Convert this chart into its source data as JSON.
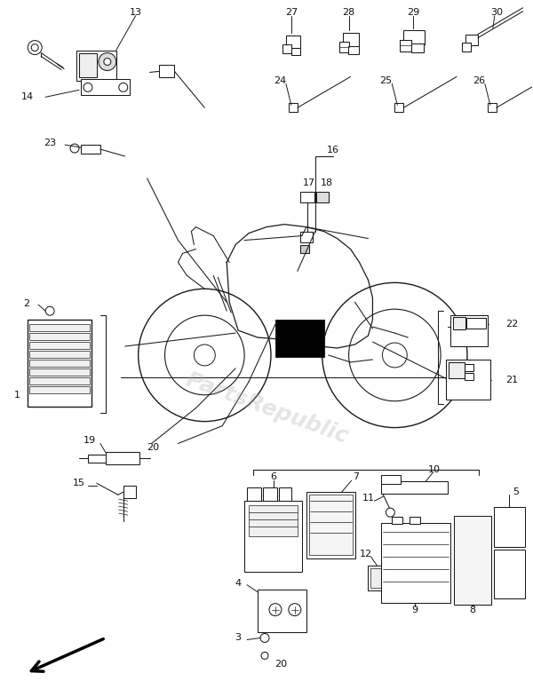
{
  "bg_color": "#ffffff",
  "watermark": "PartsRepublic",
  "fig_width": 6.0,
  "fig_height": 7.85,
  "dpi": 100,
  "line_color": "#1a1a1a",
  "lw": 0.75
}
